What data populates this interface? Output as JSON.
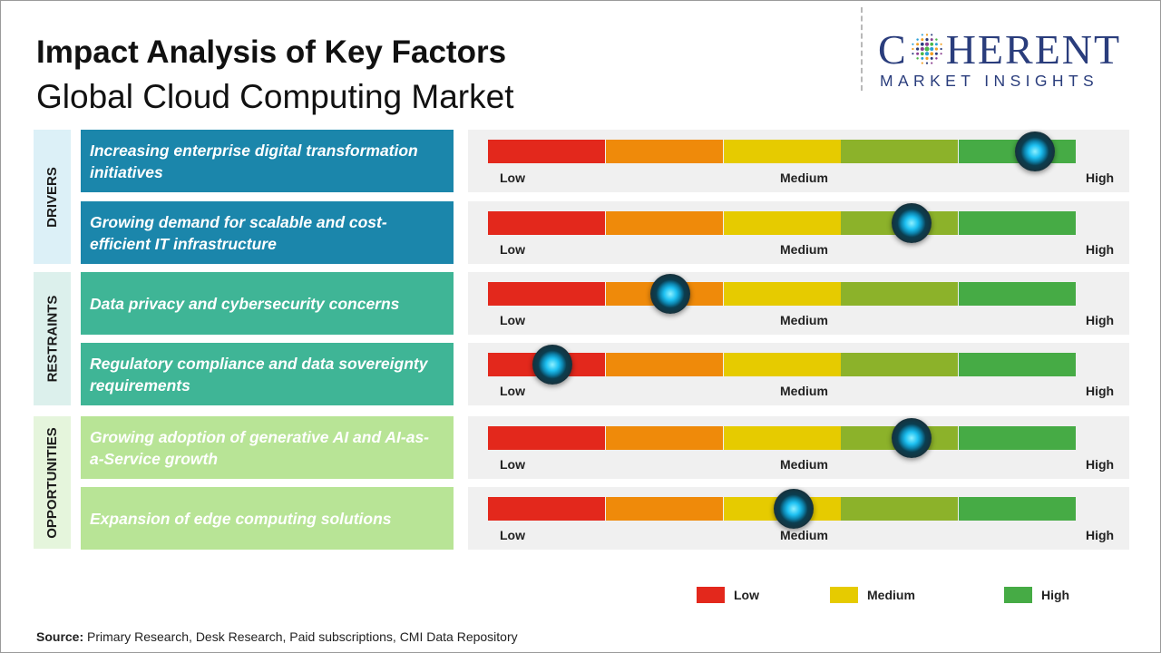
{
  "header": {
    "title": "Impact Analysis of Key Factors",
    "subtitle": "Global Cloud Computing Market"
  },
  "logo": {
    "text_before": "C",
    "text_after": "HERENT",
    "tagline": "MARKET INSIGHTS",
    "color": "#2a3d7c"
  },
  "groups": [
    {
      "label": "DRIVERS",
      "background": "#dcf0f7"
    },
    {
      "label": "RESTRAINTS",
      "background": "#dcf0ec"
    },
    {
      "label": "OPPORTUNITIES",
      "background": "#e5f5dc"
    }
  ],
  "colors": {
    "scale": [
      "#e3281c",
      "#ef8a0a",
      "#e6cb00",
      "#8cb22a",
      "#46ab45"
    ],
    "drivers": "#1b86ab",
    "restraints": "#3fb596",
    "opportunities": "#b8e496",
    "knob": "#1ec1f2"
  },
  "chart_data": {
    "type": "gauge",
    "scale_labels": {
      "low": "Low",
      "medium": "Medium",
      "high": "High"
    },
    "scale": [
      "Low",
      "Medium",
      "High"
    ],
    "factors": [
      {
        "group": "DRIVERS",
        "label": "Increasing enterprise digital transformation initiatives",
        "impact": 0.93
      },
      {
        "group": "DRIVERS",
        "label": "Growing demand for scalable and cost-efficient IT infrastructure",
        "impact": 0.72
      },
      {
        "group": "RESTRAINTS",
        "label": "Data privacy and cybersecurity concerns",
        "impact": 0.31
      },
      {
        "group": "RESTRAINTS",
        "label": "Regulatory compliance and data sovereignty requirements",
        "impact": 0.11
      },
      {
        "group": "OPPORTUNITIES",
        "label": "Growing adoption of generative AI and AI-as-a-Service growth",
        "impact": 0.72
      },
      {
        "group": "OPPORTUNITIES",
        "label": "Expansion of edge computing solutions",
        "impact": 0.52
      }
    ],
    "legend": [
      {
        "label": "Low",
        "color": "#e3281c"
      },
      {
        "label": "Medium",
        "color": "#e6cb00"
      },
      {
        "label": "High",
        "color": "#46ab45"
      }
    ]
  },
  "source": {
    "label": "Source:",
    "text": "Primary Research, Desk Research, Paid subscriptions, CMI Data Repository"
  }
}
